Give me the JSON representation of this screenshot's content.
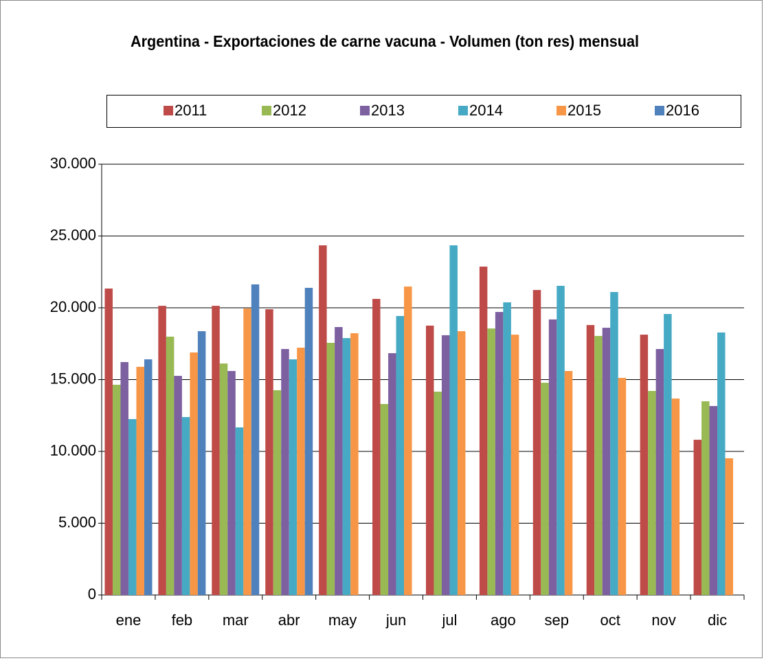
{
  "chart_data": {
    "type": "bar",
    "title": "Argentina - Exportaciones de carne vacuna - Volumen (ton res) mensual",
    "categories": [
      "ene",
      "feb",
      "mar",
      "abr",
      "may",
      "jun",
      "jul",
      "ago",
      "sep",
      "oct",
      "nov",
      "dic"
    ],
    "series": [
      {
        "name": "2011",
        "color": "#be4b48",
        "values": [
          21340,
          20140,
          20140,
          19900,
          24350,
          20620,
          18760,
          22870,
          21240,
          18800,
          18130,
          10810
        ]
      },
      {
        "name": "2012",
        "color": "#98b954",
        "values": [
          14640,
          17990,
          16120,
          14260,
          17560,
          13300,
          14160,
          18560,
          14780,
          18040,
          14210,
          13490
        ]
      },
      {
        "name": "2013",
        "color": "#7d60a0",
        "values": [
          16220,
          15260,
          15600,
          17130,
          18660,
          16840,
          18090,
          19710,
          19190,
          18610,
          17130,
          13160
        ]
      },
      {
        "name": "2014",
        "color": "#46aac5",
        "values": [
          12250,
          12390,
          11670,
          16410,
          17890,
          19430,
          24350,
          20380,
          21530,
          21100,
          19570,
          18280
        ]
      },
      {
        "name": "2015",
        "color": "#f79646",
        "values": [
          15890,
          16890,
          19950,
          17220,
          18230,
          21480,
          18370,
          18130,
          15600,
          15120,
          13680,
          9520
        ]
      },
      {
        "name": "2016",
        "color": "#4f81bd",
        "values": [
          16410,
          18370,
          21630,
          21390,
          null,
          null,
          null,
          null,
          null,
          null,
          null,
          null
        ]
      }
    ],
    "ylim": [
      0,
      30000
    ],
    "yticks": [
      0,
      {
        "value": 5000,
        "label": "5.000"
      },
      {
        "value": 10000,
        "label": "10.000"
      },
      {
        "value": 15000,
        "label": "15.000"
      },
      {
        "value": 20000,
        "label": "20.000"
      },
      {
        "value": 25000,
        "label": "25.000"
      },
      {
        "value": 30000,
        "label": "30.000"
      }
    ],
    "grid": true,
    "legend": "top"
  }
}
